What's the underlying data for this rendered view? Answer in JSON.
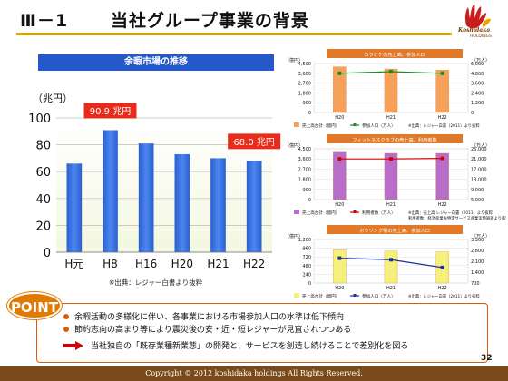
{
  "header": {
    "section": "Ⅲ－1",
    "title": "当社グループ事業の背景"
  },
  "logo": {
    "name": "Koshidaka",
    "sub": "HOLDINGS"
  },
  "main_panel": {
    "title": "余暇市場の推移",
    "source": "※出典：レジャー白書より抜粋"
  },
  "colors": {
    "accent": "#2558c9",
    "title_rule": "#d9a400",
    "point": "#e07a00",
    "footer": "#7a4a1a"
  },
  "chart_data": [
    {
      "type": "bar",
      "title": "余暇市場の推移",
      "ylabel": "（兆円）",
      "categories": [
        "H元",
        "H8",
        "H16",
        "H20",
        "H21",
        "H22"
      ],
      "values": [
        66.0,
        90.9,
        81.0,
        73.0,
        70.0,
        68.0
      ],
      "ylim": [
        0,
        100
      ],
      "yticks": [
        0,
        20,
        40,
        60,
        80,
        100
      ],
      "grid": true,
      "callouts": [
        {
          "category": "H8",
          "text": "90.9 兆円"
        },
        {
          "category": "H22",
          "text": "68.0 兆円"
        }
      ],
      "bar_color": "#2f6fe0"
    },
    {
      "type": "bar",
      "title": "カラオケの売上高、参加人口",
      "categories": [
        "H20",
        "H21",
        "H22"
      ],
      "series": [
        {
          "name": "売上高合計（億円）",
          "values": [
            4200,
            4000,
            3900
          ],
          "color": "#f6a15a"
        },
        {
          "name": "参加人口（万人）",
          "values": [
            4800,
            5000,
            4800
          ],
          "color": "#1f8a1f"
        }
      ],
      "left_unit": "（億円）",
      "right_unit": "（万人）",
      "left_ticks": [
        0,
        900,
        1800,
        2700,
        3600,
        4500
      ],
      "right_ticks": [
        0,
        1200,
        2400,
        3600,
        4800,
        6000
      ],
      "left_labels": [
        "0",
        "900",
        "1,800",
        "2,700",
        "3,600",
        "4,500"
      ],
      "right_labels": [
        "0",
        "1,200",
        "2,400",
        "3,600",
        "4,800",
        "6,000"
      ],
      "source": "※出典：レジャー白書（2011）より抜粋"
    },
    {
      "type": "bar",
      "title": "フィットネスクラブの売上高、利用者数",
      "categories": [
        "H20",
        "H21",
        "H22"
      ],
      "series": [
        {
          "name": "売上高合計（億円）",
          "values": [
            4200,
            4100,
            4100
          ],
          "color": "#b86ec8"
        },
        {
          "name": "利用者数（万人）",
          "values": [
            21000,
            21000,
            21200
          ],
          "color": "#d40000"
        }
      ],
      "left_unit": "（億円）",
      "right_unit": "（万人）",
      "left_ticks": [
        0,
        900,
        1800,
        2700,
        3600,
        4500
      ],
      "right_ticks": [
        5000,
        9000,
        13000,
        17000,
        21000,
        25000
      ],
      "left_labels": [
        "0",
        "900",
        "1,800",
        "2,700",
        "3,600",
        "4,500"
      ],
      "right_labels": [
        "5,000",
        "9,000",
        "13,000",
        "17,000",
        "21,000",
        "25,000"
      ],
      "source": "※出典：売上高 レジャー白書（2011）より抜粋",
      "source2": "利用者数：経済産業省特定サービス産業実態調査より抜粋"
    },
    {
      "type": "bar",
      "title": "ボウリング場の売上高、参加人口",
      "categories": [
        "H20",
        "H21",
        "H22"
      ],
      "series": [
        {
          "name": "売上高合計（億円）",
          "values": [
            920,
            880,
            860
          ],
          "color": "#f5f07a"
        },
        {
          "name": "参加人口（万人）",
          "values": [
            2300,
            2200,
            1700
          ],
          "color": "#1f2fa0"
        }
      ],
      "left_unit": "（億円）",
      "right_unit": "（万人）",
      "left_ticks": [
        0,
        240,
        480,
        720,
        960,
        1200
      ],
      "right_ticks": [
        700,
        1400,
        2100,
        2800,
        3500
      ],
      "left_labels": [
        "0",
        "240",
        "480",
        "720",
        "960",
        "1,200"
      ],
      "right_labels": [
        "700",
        "1,400",
        "2,100",
        "2,800",
        "3,500"
      ],
      "source": "※出典：レジャー白書（2011）より抜粋"
    }
  ],
  "point": {
    "badge": "POINT",
    "bullets": [
      "余暇活動の多様化に伴い、各事業における市場参加人口の水準は低下傾向",
      "節約志向の高まり等により震災後の安・近・短レジャーが見直されつつある"
    ],
    "conclusion": "当社独自の「既存業種新業態」の開発と、サービスを創造し続けることで差別化を図る"
  },
  "footer": {
    "copyright": "Copyright © 2012 koshidaka holdings All Rights Reserved.",
    "page": "32"
  }
}
